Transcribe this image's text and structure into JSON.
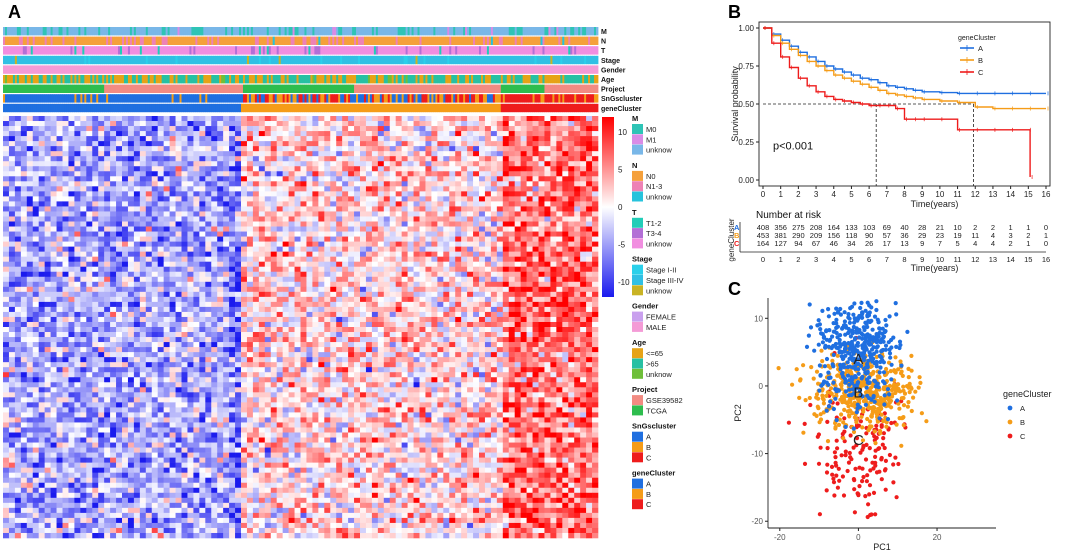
{
  "panels": {
    "a": "A",
    "b": "B",
    "c": "C"
  },
  "chart_data": [
    {
      "type": "heatmap",
      "panel": "A",
      "annotation_tracks": [
        "M",
        "N",
        "T",
        "Stage",
        "Gender",
        "Age",
        "Project",
        "SnGscluster",
        "geneCluster"
      ],
      "scale": {
        "ticks": [
          10,
          5,
          0,
          -5,
          -10
        ],
        "low_color": "#1a1aee",
        "mid_color": "#ffffff",
        "high_color": "#ff0000"
      },
      "legend_groups": [
        {
          "title": "M",
          "items": [
            {
              "label": "M0",
              "color": "#2ec4b6"
            },
            {
              "label": "M1",
              "color": "#d98be6"
            },
            {
              "label": "unknow",
              "color": "#79b7e8"
            }
          ]
        },
        {
          "title": "N",
          "items": [
            {
              "label": "N0",
              "color": "#f5a03b"
            },
            {
              "label": "N1-3",
              "color": "#ee82b5"
            },
            {
              "label": "unknow",
              "color": "#27c3dc"
            }
          ]
        },
        {
          "title": "T",
          "items": [
            {
              "label": "T1-2",
              "color": "#22cdb8"
            },
            {
              "label": "T3-4",
              "color": "#b36fd6"
            },
            {
              "label": "unknow",
              "color": "#f18ee0"
            }
          ]
        },
        {
          "title": "Stage",
          "items": [
            {
              "label": "Stage I-II",
              "color": "#2ad0ea"
            },
            {
              "label": "Stage III-IV",
              "color": "#30c0e4"
            },
            {
              "label": "unknow",
              "color": "#c9b324"
            }
          ]
        },
        {
          "title": "Gender",
          "items": [
            {
              "label": "FEMALE",
              "color": "#c9a0ee"
            },
            {
              "label": "MALE",
              "color": "#f49bd6"
            }
          ]
        },
        {
          "title": "Age",
          "items": [
            {
              "label": "<=65",
              "color": "#e6a317"
            },
            {
              "label": ">65",
              "color": "#27c0a3"
            },
            {
              "label": "unknow",
              "color": "#6fbf3a"
            }
          ]
        },
        {
          "title": "Project",
          "items": [
            {
              "label": "GSE39582",
              "color": "#f28b82"
            },
            {
              "label": "TCGA",
              "color": "#2ebd4e"
            }
          ]
        },
        {
          "title": "SnGscluster",
          "items": [
            {
              "label": "A",
              "color": "#1f6fe0"
            },
            {
              "label": "B",
              "color": "#f59c18"
            },
            {
              "label": "C",
              "color": "#ee1c1c"
            }
          ]
        },
        {
          "title": "geneCluster",
          "items": [
            {
              "label": "A",
              "color": "#1f6fe0"
            },
            {
              "label": "B",
              "color": "#f59c18"
            },
            {
              "label": "C",
              "color": "#ee1c1c"
            }
          ]
        }
      ]
    },
    {
      "type": "line",
      "panel": "B",
      "xlabel": "Time(years)",
      "ylabel": "Survival probability",
      "xlim": [
        0,
        16
      ],
      "ylim": [
        0,
        1
      ],
      "xticks": [
        0,
        1,
        2,
        3,
        4,
        5,
        6,
        7,
        8,
        9,
        10,
        11,
        12,
        13,
        14,
        15,
        16
      ],
      "yticks": [
        "0.00",
        "0.25",
        "0.50",
        "0.75",
        "1.00"
      ],
      "pvalue": "p<0.001",
      "legend_title": "geneCluster",
      "series": [
        {
          "name": "A",
          "color": "#1f6fe0",
          "x": [
            0,
            0.5,
            1,
            1.5,
            2,
            2.5,
            3,
            3.5,
            4,
            4.5,
            5,
            5.5,
            6,
            6.5,
            7,
            7.5,
            8,
            8.5,
            9,
            10,
            11,
            12,
            13,
            14,
            15,
            16
          ],
          "y": [
            1.0,
            0.96,
            0.92,
            0.88,
            0.84,
            0.81,
            0.78,
            0.75,
            0.73,
            0.71,
            0.69,
            0.67,
            0.66,
            0.64,
            0.62,
            0.61,
            0.6,
            0.59,
            0.58,
            0.575,
            0.57,
            0.57,
            0.57,
            0.57,
            0.57,
            0.57
          ]
        },
        {
          "name": "B",
          "color": "#f59c18",
          "x": [
            0,
            0.5,
            1,
            1.5,
            2,
            2.5,
            3,
            3.5,
            4,
            4.5,
            5,
            5.5,
            6,
            6.5,
            7,
            7.5,
            8,
            8.5,
            9,
            10,
            11,
            12,
            13,
            14,
            15,
            16
          ],
          "y": [
            1.0,
            0.95,
            0.9,
            0.86,
            0.82,
            0.78,
            0.75,
            0.72,
            0.69,
            0.67,
            0.65,
            0.63,
            0.61,
            0.59,
            0.57,
            0.56,
            0.55,
            0.54,
            0.53,
            0.52,
            0.51,
            0.48,
            0.47,
            0.47,
            0.47,
            0.47
          ]
        },
        {
          "name": "C",
          "color": "#ee1c1c",
          "x": [
            0,
            0.5,
            1,
            1.5,
            2,
            2.5,
            3,
            3.5,
            4,
            4.5,
            5,
            5.5,
            6,
            6.5,
            7,
            7.5,
            8,
            8.5,
            9,
            10,
            11,
            12,
            13,
            14,
            15,
            15.1
          ],
          "y": [
            1.0,
            0.9,
            0.81,
            0.74,
            0.67,
            0.62,
            0.58,
            0.55,
            0.53,
            0.52,
            0.51,
            0.5,
            0.49,
            0.49,
            0.49,
            0.47,
            0.4,
            0.4,
            0.4,
            0.4,
            0.33,
            0.33,
            0.33,
            0.33,
            0.33,
            0.02
          ]
        }
      ],
      "median_lines": [
        {
          "x": 6.4,
          "y": 0.5
        },
        {
          "x": 11.9,
          "y": 0.5
        }
      ],
      "risk_table": {
        "title": "Number at risk",
        "ylabel": "geneCluster",
        "xlabel": "Time(years)",
        "rows": [
          {
            "name": "A",
            "values": [
              "408",
              "356",
              "275",
              "208",
              "164",
              "133",
              "103",
              "69",
              "40",
              "28",
              "21",
              "10",
              "2",
              "2",
              "1",
              "1",
              "0"
            ]
          },
          {
            "name": "B",
            "values": [
              "453",
              "381",
              "290",
              "209",
              "156",
              "118",
              "90",
              "57",
              "36",
              "29",
              "23",
              "19",
              "11",
              "4",
              "3",
              "2",
              "1"
            ]
          },
          {
            "name": "C",
            "values": [
              "164",
              "127",
              "94",
              "67",
              "46",
              "34",
              "26",
              "17",
              "13",
              "9",
              "7",
              "5",
              "4",
              "4",
              "2",
              "1",
              "0"
            ]
          }
        ]
      }
    },
    {
      "type": "scatter",
      "panel": "C",
      "xlabel": "PC1",
      "ylabel": "PC2",
      "xlim": [
        -23,
        35
      ],
      "ylim": [
        -21,
        13
      ],
      "xticks": [
        -20,
        0,
        20
      ],
      "yticks": [
        10,
        0,
        -10,
        -20
      ],
      "legend_title": "geneCluster",
      "series": [
        {
          "name": "A",
          "color": "#1f6fe0",
          "center": [
            0,
            5
          ],
          "spread": [
            5,
            4
          ],
          "n": 420
        },
        {
          "name": "B",
          "color": "#f59c18",
          "center": [
            1,
            -1
          ],
          "spread": [
            7,
            3
          ],
          "n": 450
        },
        {
          "name": "C",
          "color": "#ee1c1c",
          "center": [
            1,
            -9
          ],
          "spread": [
            6,
            5
          ],
          "n": 160
        }
      ],
      "labels": [
        {
          "text": "A",
          "x": 0,
          "y": 4
        },
        {
          "text": "B",
          "x": 0,
          "y": -1
        },
        {
          "text": "C",
          "x": 0,
          "y": -8
        }
      ]
    }
  ]
}
